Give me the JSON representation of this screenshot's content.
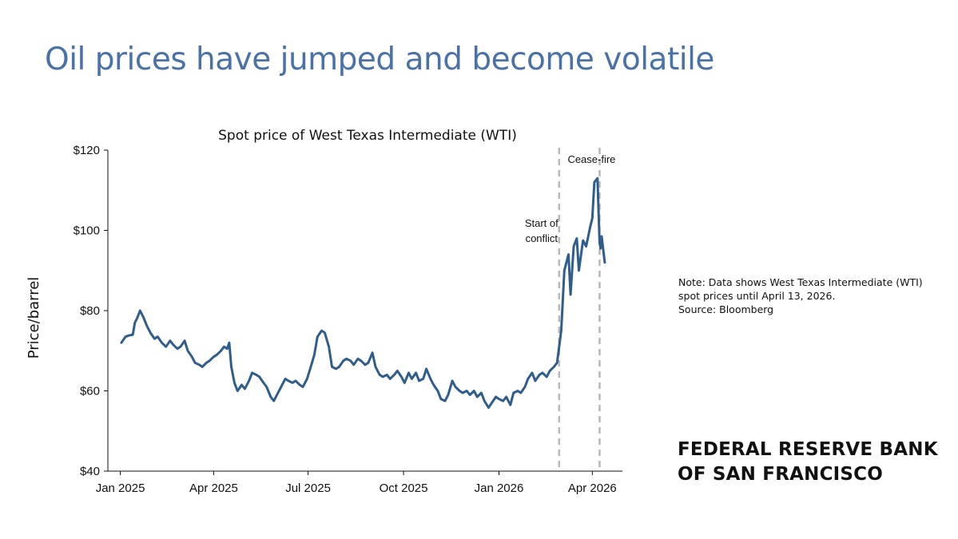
{
  "slide": {
    "title": "Oil prices have jumped and become volatile"
  },
  "colors": {
    "title": "#4a72a8",
    "series": "#2f5d8c",
    "annotation_line": "#b8b8b8"
  },
  "note": {
    "lines": [
      "Note: Data shows West Texas Intermediate (WTI)",
      "spot prices until April 13, 2026.",
      "Source: Bloomberg"
    ]
  },
  "brand": {
    "line1": "FEDERAL RESERVE BANK",
    "line2": "OF SAN FRANCISCO"
  },
  "chart_data": {
    "type": "line",
    "title": "Spot price of West Texas Intermediate (WTI)",
    "xlabel": "",
    "ylabel": "Price/barrel",
    "ylim": [
      40,
      120
    ],
    "yticks": [
      40,
      60,
      80,
      100,
      120
    ],
    "ytick_labels": [
      "$40",
      "$60",
      "$80",
      "$100",
      "$120"
    ],
    "xlim": [
      "2024-12-20",
      "2026-04-30"
    ],
    "xticks": [
      "2025-01-01",
      "2025-04-01",
      "2025-07-01",
      "2025-10-01",
      "2026-01-01",
      "2026-04-01"
    ],
    "xtick_labels": [
      "Jan 2025",
      "Apr 2025",
      "Jul 2025",
      "Oct 2025",
      "Jan 2026",
      "Apr 2026"
    ],
    "grid": false,
    "legend": "none",
    "annotations": [
      {
        "date": "2026-02-28",
        "label_lines": [
          "Start of",
          "conflict"
        ],
        "style": "dashed-vertical"
      },
      {
        "date": "2026-04-08",
        "label_lines": [
          "Cease-fire"
        ],
        "style": "dashed-vertical"
      }
    ],
    "series": [
      {
        "points": [
          [
            "2025-01-02",
            72.0
          ],
          [
            "2025-01-06",
            73.5
          ],
          [
            "2025-01-09",
            73.8
          ],
          [
            "2025-01-13",
            74.0
          ],
          [
            "2025-01-15",
            77.0
          ],
          [
            "2025-01-17",
            78.0
          ],
          [
            "2025-01-20",
            80.0
          ],
          [
            "2025-01-23",
            78.5
          ],
          [
            "2025-01-27",
            76.0
          ],
          [
            "2025-01-30",
            74.5
          ],
          [
            "2025-02-03",
            73.0
          ],
          [
            "2025-02-06",
            73.5
          ],
          [
            "2025-02-10",
            72.0
          ],
          [
            "2025-02-14",
            71.0
          ],
          [
            "2025-02-18",
            72.5
          ],
          [
            "2025-02-21",
            71.5
          ],
          [
            "2025-02-25",
            70.5
          ],
          [
            "2025-02-28",
            71.0
          ],
          [
            "2025-03-04",
            72.5
          ],
          [
            "2025-03-07",
            70.0
          ],
          [
            "2025-03-11",
            68.5
          ],
          [
            "2025-03-14",
            67.0
          ],
          [
            "2025-03-18",
            66.5
          ],
          [
            "2025-03-21",
            66.0
          ],
          [
            "2025-03-25",
            67.0
          ],
          [
            "2025-03-28",
            67.5
          ],
          [
            "2025-04-01",
            68.5
          ],
          [
            "2025-04-04",
            69.0
          ],
          [
            "2025-04-08",
            70.0
          ],
          [
            "2025-04-11",
            71.0
          ],
          [
            "2025-04-14",
            70.5
          ],
          [
            "2025-04-16",
            72.0
          ],
          [
            "2025-04-18",
            66.0
          ],
          [
            "2025-04-21",
            62.0
          ],
          [
            "2025-04-24",
            60.0
          ],
          [
            "2025-04-28",
            61.5
          ],
          [
            "2025-05-01",
            60.5
          ],
          [
            "2025-05-05",
            62.5
          ],
          [
            "2025-05-08",
            64.5
          ],
          [
            "2025-05-12",
            64.0
          ],
          [
            "2025-05-15",
            63.5
          ],
          [
            "2025-05-19",
            62.0
          ],
          [
            "2025-05-22",
            61.0
          ],
          [
            "2025-05-26",
            58.5
          ],
          [
            "2025-05-29",
            57.5
          ],
          [
            "2025-06-02",
            59.5
          ],
          [
            "2025-06-05",
            61.0
          ],
          [
            "2025-06-09",
            63.0
          ],
          [
            "2025-06-12",
            62.5
          ],
          [
            "2025-06-16",
            62.0
          ],
          [
            "2025-06-19",
            62.5
          ],
          [
            "2025-06-23",
            61.5
          ],
          [
            "2025-06-26",
            61.0
          ],
          [
            "2025-06-30",
            63.0
          ],
          [
            "2025-07-03",
            65.5
          ],
          [
            "2025-07-07",
            69.0
          ],
          [
            "2025-07-10",
            73.5
          ],
          [
            "2025-07-14",
            75.0
          ],
          [
            "2025-07-17",
            74.5
          ],
          [
            "2025-07-21",
            71.0
          ],
          [
            "2025-07-24",
            66.0
          ],
          [
            "2025-07-28",
            65.5
          ],
          [
            "2025-07-31",
            66.0
          ],
          [
            "2025-08-04",
            67.5
          ],
          [
            "2025-08-07",
            68.0
          ],
          [
            "2025-08-11",
            67.5
          ],
          [
            "2025-08-14",
            66.5
          ],
          [
            "2025-08-18",
            68.0
          ],
          [
            "2025-08-21",
            67.5
          ],
          [
            "2025-08-25",
            66.5
          ],
          [
            "2025-08-28",
            67.0
          ],
          [
            "2025-09-01",
            69.5
          ],
          [
            "2025-09-04",
            66.0
          ],
          [
            "2025-09-08",
            64.0
          ],
          [
            "2025-09-11",
            63.5
          ],
          [
            "2025-09-15",
            64.0
          ],
          [
            "2025-09-18",
            63.0
          ],
          [
            "2025-09-22",
            64.0
          ],
          [
            "2025-09-25",
            65.0
          ],
          [
            "2025-09-29",
            63.5
          ],
          [
            "2025-10-02",
            62.0
          ],
          [
            "2025-10-06",
            64.5
          ],
          [
            "2025-10-09",
            63.0
          ],
          [
            "2025-10-13",
            64.5
          ],
          [
            "2025-10-16",
            62.5
          ],
          [
            "2025-10-20",
            63.0
          ],
          [
            "2025-10-23",
            65.5
          ],
          [
            "2025-10-27",
            63.0
          ],
          [
            "2025-10-30",
            61.5
          ],
          [
            "2025-11-03",
            60.0
          ],
          [
            "2025-11-06",
            58.0
          ],
          [
            "2025-11-10",
            57.5
          ],
          [
            "2025-11-13",
            59.0
          ],
          [
            "2025-11-17",
            62.5
          ],
          [
            "2025-11-20",
            61.0
          ],
          [
            "2025-11-24",
            60.0
          ],
          [
            "2025-11-27",
            59.5
          ],
          [
            "2025-12-01",
            60.0
          ],
          [
            "2025-12-04",
            59.0
          ],
          [
            "2025-12-08",
            60.0
          ],
          [
            "2025-12-11",
            58.5
          ],
          [
            "2025-12-15",
            59.5
          ],
          [
            "2025-12-18",
            57.5
          ],
          [
            "2025-12-22",
            55.8
          ],
          [
            "2025-12-25",
            57.0
          ],
          [
            "2025-12-29",
            58.5
          ],
          [
            "2026-01-01",
            58.0
          ],
          [
            "2026-01-05",
            57.5
          ],
          [
            "2026-01-08",
            58.5
          ],
          [
            "2026-01-12",
            56.5
          ],
          [
            "2026-01-15",
            59.5
          ],
          [
            "2026-01-19",
            60.0
          ],
          [
            "2026-01-22",
            59.5
          ],
          [
            "2026-01-26",
            61.0
          ],
          [
            "2026-01-29",
            63.0
          ],
          [
            "2026-02-02",
            64.5
          ],
          [
            "2026-02-05",
            62.5
          ],
          [
            "2026-02-09",
            64.0
          ],
          [
            "2026-02-12",
            64.5
          ],
          [
            "2026-02-16",
            63.5
          ],
          [
            "2026-02-19",
            65.0
          ],
          [
            "2026-02-23",
            66.0
          ],
          [
            "2026-02-26",
            67.0
          ],
          [
            "2026-03-02",
            75.0
          ],
          [
            "2026-03-05",
            90.0
          ],
          [
            "2026-03-09",
            94.0
          ],
          [
            "2026-03-11",
            84.0
          ],
          [
            "2026-03-14",
            96.0
          ],
          [
            "2026-03-17",
            98.0
          ],
          [
            "2026-03-19",
            90.0
          ],
          [
            "2026-03-23",
            97.5
          ],
          [
            "2026-03-26",
            96.0
          ],
          [
            "2026-03-30",
            101.0
          ],
          [
            "2026-04-01",
            103.0
          ],
          [
            "2026-04-03",
            112.0
          ],
          [
            "2026-04-06",
            113.0
          ],
          [
            "2026-04-08",
            97.0
          ],
          [
            "2026-04-09",
            95.5
          ],
          [
            "2026-04-10",
            98.5
          ],
          [
            "2026-04-13",
            92.0
          ]
        ]
      }
    ]
  }
}
